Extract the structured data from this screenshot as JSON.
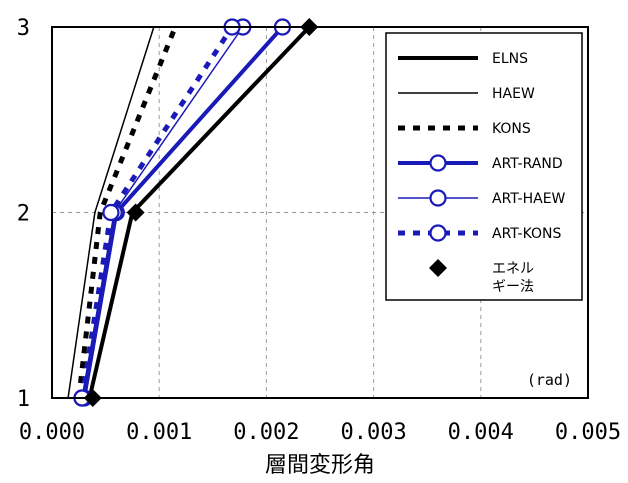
{
  "chart_data": {
    "type": "line",
    "title": "",
    "xlabel": "層間変形角",
    "ylabel": "",
    "unit_annotation": "(rad)",
    "xlim": [
      0.0,
      0.005
    ],
    "ylim": [
      1,
      3
    ],
    "x_ticks": [
      0.0,
      0.001,
      0.002,
      0.003,
      0.004,
      0.005
    ],
    "x_tick_labels": [
      "0.000",
      "0.001",
      "0.002",
      "0.003",
      "0.004",
      "0.005"
    ],
    "y_ticks": [
      1,
      2,
      3
    ],
    "y_tick_labels": [
      "1",
      "2",
      "3"
    ],
    "grid": true,
    "legend_position": "top-right",
    "series": [
      {
        "name": "ELNS",
        "color": "#000000",
        "style": "solid-thick",
        "marker": "none",
        "x": [
          0.00035,
          0.00075,
          0.0024
        ],
        "y": [
          1,
          2,
          3
        ]
      },
      {
        "name": "HAEW",
        "color": "#000000",
        "style": "solid-thin",
        "marker": "none",
        "x": [
          0.00015,
          0.0004,
          0.00095
        ],
        "y": [
          1,
          2,
          3
        ]
      },
      {
        "name": "KONS",
        "color": "#000000",
        "style": "dashed-thick",
        "marker": "none",
        "x": [
          0.00025,
          0.00045,
          0.00115
        ],
        "y": [
          1,
          2,
          3
        ]
      },
      {
        "name": "ART-RAND",
        "color": "#1a1ab8",
        "style": "solid-thick",
        "marker": "open-circle",
        "x": [
          0.0003,
          0.0006,
          0.00215
        ],
        "y": [
          1,
          2,
          3
        ]
      },
      {
        "name": "ART-HAEW",
        "color": "#1a1ab8",
        "style": "solid-thin",
        "marker": "open-circle",
        "x": [
          0.00028,
          0.00058,
          0.00178
        ],
        "y": [
          1,
          2,
          3
        ]
      },
      {
        "name": "ART-KONS",
        "color": "#1a1ab8",
        "style": "dashed-thick",
        "marker": "open-circle",
        "x": [
          0.00028,
          0.00055,
          0.00168
        ],
        "y": [
          1,
          2,
          3
        ]
      },
      {
        "name": "エネル\nギー法",
        "color": "#000000",
        "style": "none",
        "marker": "filled-diamond",
        "x": [
          0.00038,
          0.00078,
          0.0024
        ],
        "y": [
          1,
          2,
          3
        ]
      }
    ]
  }
}
